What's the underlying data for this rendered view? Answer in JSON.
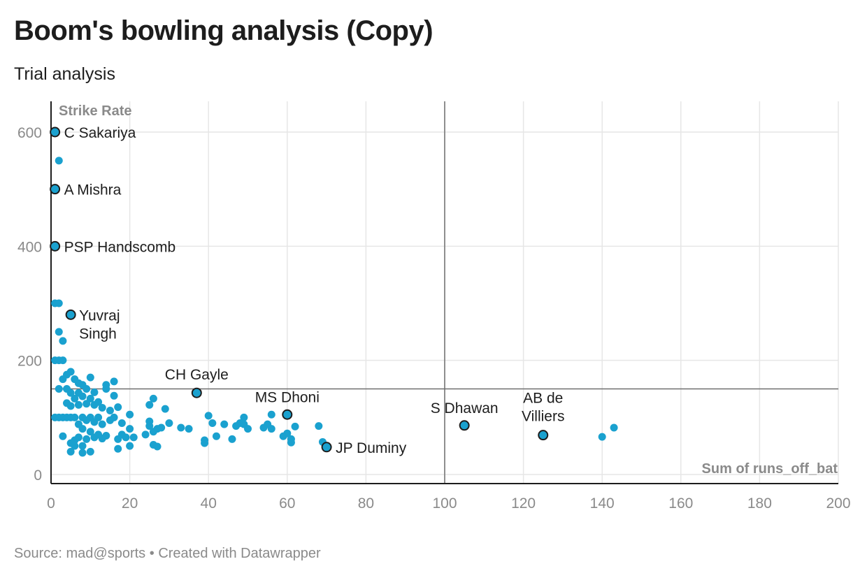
{
  "title": "Boom's bowling analysis (Copy)",
  "subtitle": "Trial analysis",
  "footer": {
    "source_label": "Source:",
    "source": "mad@sports",
    "separator": "•",
    "created_with": "Created with Datawrapper"
  },
  "colors": {
    "dot": "#1aa1cf",
    "highlight_stroke": "#1d1d1d",
    "grid": "#e6e6e6",
    "reference_line": "#6e6e6e",
    "axis": "#1d1d1d",
    "tick_text": "#8a8a8a"
  },
  "chart_data": {
    "type": "scatter",
    "xlabel": "Sum of runs_off_bat",
    "ylabel": "Strike Rate",
    "xlim": [
      0,
      200
    ],
    "ylim": [
      0,
      600
    ],
    "x_ticks": [
      0,
      20,
      40,
      60,
      80,
      100,
      120,
      140,
      160,
      180,
      200
    ],
    "y_ticks": [
      0,
      200,
      400,
      600
    ],
    "grid": true,
    "reference_lines": {
      "x": 100,
      "y": 150
    },
    "highlighted": [
      {
        "label": "C Sakariya",
        "x": 1,
        "y": 600
      },
      {
        "label": "A Mishra",
        "x": 1,
        "y": 500
      },
      {
        "label": "PSP Handscomb",
        "x": 1,
        "y": 400
      },
      {
        "label": "Yuvraj Singh",
        "x": 5,
        "y": 280
      },
      {
        "label": "CH Gayle",
        "x": 37,
        "y": 143
      },
      {
        "label": "MS Dhoni",
        "x": 60,
        "y": 105
      },
      {
        "label": "JP Duminy",
        "x": 70,
        "y": 48
      },
      {
        "label": "S Dhawan",
        "x": 105,
        "y": 86
      },
      {
        "label": "AB de Villiers",
        "x": 125,
        "y": 69
      }
    ],
    "points": [
      [
        2,
        550
      ],
      [
        1,
        300
      ],
      [
        2,
        300
      ],
      [
        2,
        250
      ],
      [
        3,
        234
      ],
      [
        1,
        200
      ],
      [
        2,
        200
      ],
      [
        3,
        200
      ],
      [
        5,
        180
      ],
      [
        4,
        175
      ],
      [
        3,
        167
      ],
      [
        6,
        167
      ],
      [
        8,
        157
      ],
      [
        7,
        160
      ],
      [
        10,
        170
      ],
      [
        14,
        157
      ],
      [
        16,
        163
      ],
      [
        2,
        150
      ],
      [
        4,
        150
      ],
      [
        9,
        150
      ],
      [
        14,
        150
      ],
      [
        5,
        143
      ],
      [
        7,
        143
      ],
      [
        11,
        144
      ],
      [
        16,
        138
      ],
      [
        6,
        133
      ],
      [
        8,
        137
      ],
      [
        10,
        133
      ],
      [
        12,
        127
      ],
      [
        4,
        125
      ],
      [
        5,
        120
      ],
      [
        7,
        122
      ],
      [
        9,
        124
      ],
      [
        11,
        122
      ],
      [
        13,
        117
      ],
      [
        15,
        112
      ],
      [
        17,
        118
      ],
      [
        25,
        122
      ],
      [
        26,
        133
      ],
      [
        29,
        115
      ],
      [
        1,
        100
      ],
      [
        2,
        100
      ],
      [
        3,
        100
      ],
      [
        4,
        100
      ],
      [
        5,
        100
      ],
      [
        6,
        100
      ],
      [
        8,
        100
      ],
      [
        10,
        100
      ],
      [
        12,
        100
      ],
      [
        16,
        100
      ],
      [
        20,
        105
      ],
      [
        15,
        95
      ],
      [
        18,
        90
      ],
      [
        13,
        88
      ],
      [
        11,
        92
      ],
      [
        9,
        95
      ],
      [
        7,
        88
      ],
      [
        8,
        80
      ],
      [
        10,
        75
      ],
      [
        12,
        70
      ],
      [
        14,
        68
      ],
      [
        13,
        63
      ],
      [
        11,
        65
      ],
      [
        9,
        62
      ],
      [
        7,
        65
      ],
      [
        6,
        60
      ],
      [
        5,
        55
      ],
      [
        3,
        67
      ],
      [
        6,
        50
      ],
      [
        8,
        50
      ],
      [
        5,
        40
      ],
      [
        8,
        38
      ],
      [
        10,
        40
      ],
      [
        17,
        45
      ],
      [
        17,
        62
      ],
      [
        18,
        70
      ],
      [
        19,
        65
      ],
      [
        20,
        80
      ],
      [
        21,
        65
      ],
      [
        20,
        50
      ],
      [
        24,
        70
      ],
      [
        25,
        93
      ],
      [
        25,
        85
      ],
      [
        26,
        75
      ],
      [
        27,
        80
      ],
      [
        28,
        82
      ],
      [
        26,
        52
      ],
      [
        27,
        49
      ],
      [
        30,
        90
      ],
      [
        33,
        82
      ],
      [
        35,
        80
      ],
      [
        40,
        103
      ],
      [
        41,
        90
      ],
      [
        39,
        60
      ],
      [
        39,
        55
      ],
      [
        42,
        67
      ],
      [
        44,
        88
      ],
      [
        46,
        62
      ],
      [
        47,
        85
      ],
      [
        48,
        90
      ],
      [
        49,
        100
      ],
      [
        49,
        88
      ],
      [
        50,
        80
      ],
      [
        54,
        82
      ],
      [
        55,
        88
      ],
      [
        56,
        105
      ],
      [
        56,
        80
      ],
      [
        59,
        67
      ],
      [
        60,
        72
      ],
      [
        61,
        62
      ],
      [
        62,
        84
      ],
      [
        61,
        56
      ],
      [
        68,
        85
      ],
      [
        69,
        57
      ],
      [
        140,
        66
      ],
      [
        143,
        82
      ]
    ]
  }
}
